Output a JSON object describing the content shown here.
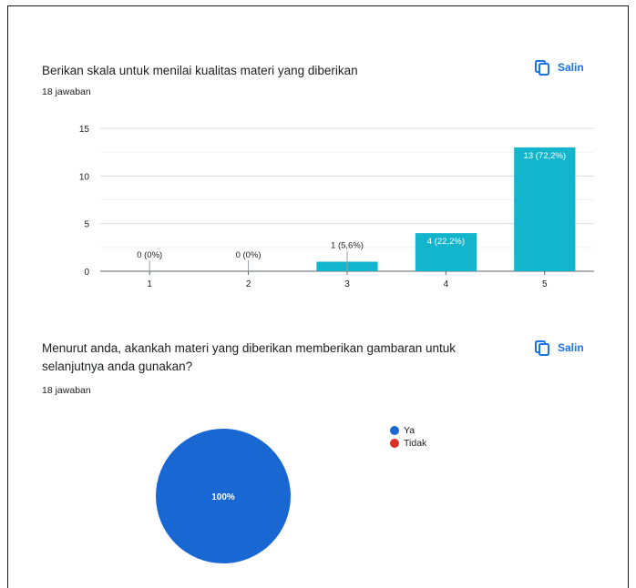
{
  "questions": [
    {
      "title": "Berikan skala untuk menilai kualitas materi yang diberikan",
      "responses": "18 jawaban",
      "copy_label": "Salin"
    },
    {
      "title": "Menurut anda, akankah materi yang diberikan memberikan gambaran untuk selanjutnya anda gunakan?",
      "responses": "18 jawaban",
      "copy_label": "Salin"
    }
  ],
  "colors": {
    "bar": "#12b5cb",
    "accent": "#1a73e8",
    "ya": "#1967d2",
    "tidak": "#d93025"
  },
  "chart_data": [
    {
      "type": "bar",
      "categories": [
        "1",
        "2",
        "3",
        "4",
        "5"
      ],
      "values": [
        0,
        0,
        1,
        4,
        13
      ],
      "data_labels": [
        "0 (0%)",
        "0 (0%)",
        "1 (5,6%)",
        "4 (22,2%)",
        "13 (72,2%)"
      ],
      "ylim": [
        0,
        15
      ],
      "yticks": [
        0,
        5,
        10,
        15
      ],
      "grid": true
    },
    {
      "type": "pie",
      "labels": [
        "Ya",
        "Tidak"
      ],
      "values": [
        100,
        0
      ],
      "slice_labels": [
        "100%",
        ""
      ],
      "legend_position": "right"
    }
  ]
}
